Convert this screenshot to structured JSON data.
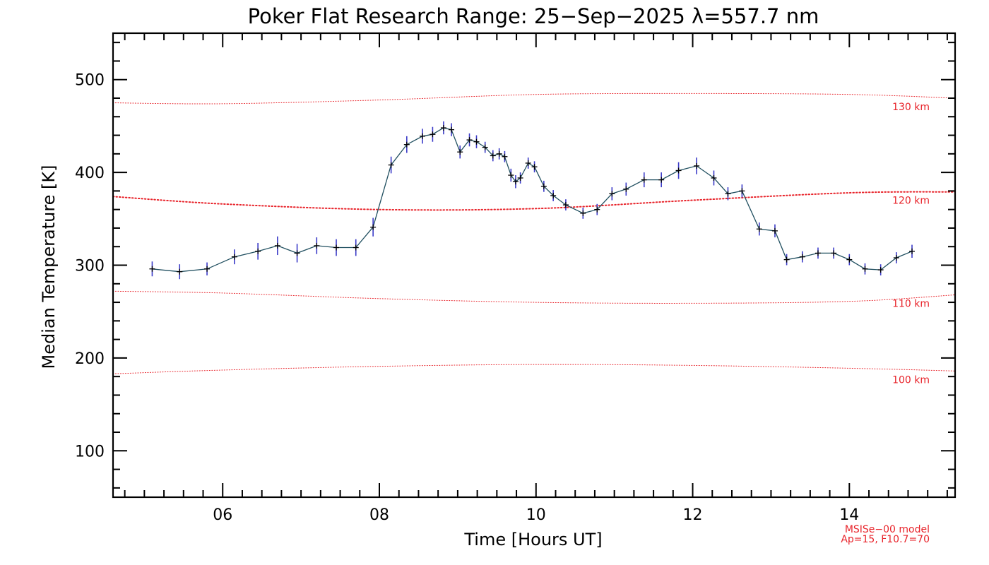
{
  "chart_data": {
    "type": "line",
    "title": "Poker Flat Research Range: 25−Sep−2025 λ=557.7 nm",
    "xlabel": "Time [Hours UT]",
    "ylabel": "Median Temperature [K]",
    "xlim": [
      4.6,
      15.35
    ],
    "ylim": [
      50,
      550
    ],
    "xticks": [
      {
        "value": 6,
        "label": "06"
      },
      {
        "value": 8,
        "label": "08"
      },
      {
        "value": 10,
        "label": "10"
      },
      {
        "value": 12,
        "label": "12"
      },
      {
        "value": 14,
        "label": "14"
      }
    ],
    "yticks": [
      {
        "value": 100,
        "label": "100"
      },
      {
        "value": 200,
        "label": "200"
      },
      {
        "value": 300,
        "label": "300"
      },
      {
        "value": 400,
        "label": "400"
      },
      {
        "value": 500,
        "label": "500"
      }
    ],
    "grid": false,
    "colors": {
      "data_line": "#1f4e5f",
      "error_bar": "#3b3bc8",
      "marker": "#000000",
      "model": "#e8232a"
    },
    "measurements": {
      "x": [
        5.1,
        5.45,
        5.8,
        6.15,
        6.45,
        6.7,
        6.95,
        7.2,
        7.45,
        7.7,
        7.92,
        8.15,
        8.35,
        8.55,
        8.68,
        8.82,
        8.92,
        9.03,
        9.15,
        9.24,
        9.35,
        9.45,
        9.53,
        9.6,
        9.68,
        9.74,
        9.8,
        9.9,
        9.98,
        10.1,
        10.22,
        10.38,
        10.6,
        10.78,
        10.97,
        11.15,
        11.38,
        11.6,
        11.82,
        12.05,
        12.27,
        12.45,
        12.63,
        12.85,
        13.05,
        13.2,
        13.4,
        13.6,
        13.8,
        14.0,
        14.2,
        14.4,
        14.6,
        14.8
      ],
      "y": [
        296,
        293,
        296,
        309,
        315,
        321,
        313,
        321,
        319,
        319,
        341,
        408,
        430,
        439,
        441,
        448,
        446,
        422,
        435,
        433,
        427,
        418,
        420,
        417,
        397,
        390,
        394,
        410,
        406,
        385,
        375,
        365,
        356,
        360,
        377,
        382,
        392,
        392,
        402,
        407,
        394,
        377,
        380,
        339,
        337,
        306,
        309,
        313,
        313,
        306,
        296,
        295,
        308,
        315
      ],
      "error": [
        8,
        8,
        7,
        8,
        9,
        10,
        10,
        9,
        9,
        9,
        10,
        9,
        9,
        8,
        8,
        7,
        7,
        7,
        7,
        7,
        6,
        6,
        6,
        6,
        7,
        7,
        6,
        6,
        6,
        6,
        6,
        6,
        6,
        6,
        7,
        7,
        8,
        8,
        9,
        9,
        8,
        7,
        7,
        7,
        7,
        6,
        6,
        6,
        6,
        6,
        6,
        6,
        6,
        7
      ]
    },
    "model_curves": [
      {
        "label": "130 km",
        "x": [
          4.6,
          6.0,
          8.0,
          10.0,
          12.0,
          14.0,
          15.35
        ],
        "y": [
          475,
          474,
          478,
          484,
          485,
          484,
          480
        ]
      },
      {
        "label": "120 km",
        "x": [
          4.6,
          6.0,
          8.0,
          10.0,
          12.0,
          14.0,
          15.35
        ],
        "y": [
          374,
          366,
          360,
          361,
          370,
          378,
          379
        ]
      },
      {
        "label": "110 km",
        "x": [
          4.6,
          6.0,
          8.0,
          10.0,
          12.0,
          14.0,
          15.35
        ],
        "y": [
          272,
          270,
          264,
          260,
          259,
          261,
          268
        ]
      },
      {
        "label": "100 km",
        "x": [
          4.6,
          6.0,
          8.0,
          10.0,
          12.0,
          14.0,
          15.35
        ],
        "y": [
          183,
          187,
          191,
          193,
          192,
          189,
          186
        ]
      }
    ],
    "model_note": [
      "MSISe−00 model",
      "Ap=15, F10.7=70"
    ]
  }
}
